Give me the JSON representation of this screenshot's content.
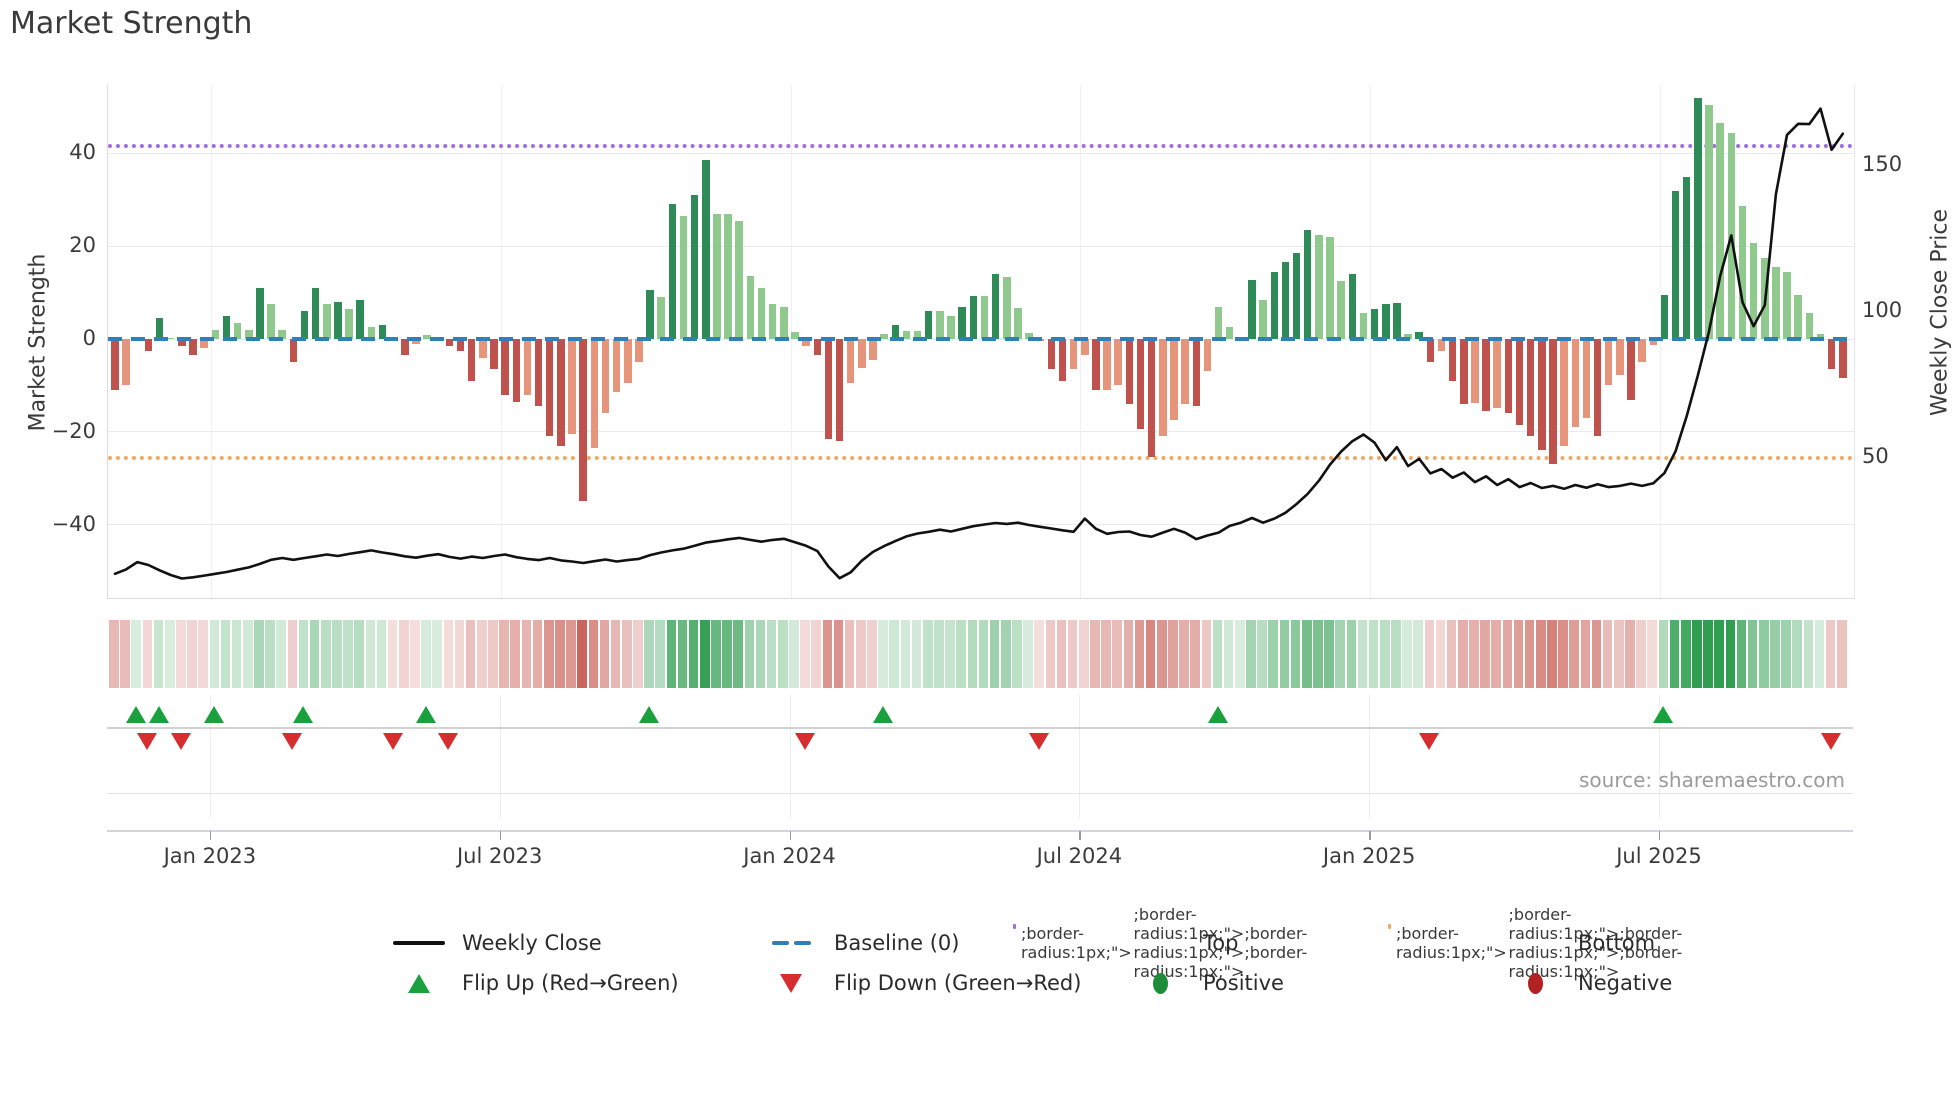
{
  "title": "Market Strength",
  "source_text": "source: sharemaestro.com",
  "axes": {
    "left_label": "Market Strength",
    "right_label": "Weekly Close Price",
    "left_ticks": [
      40,
      20,
      0,
      -20,
      -40
    ],
    "right_ticks": [
      150,
      100,
      50
    ],
    "x_ticks": [
      {
        "label": "Jan 2023",
        "week": 8.6
      },
      {
        "label": "Jul 2023",
        "week": 34.6
      },
      {
        "label": "Jan 2024",
        "week": 60.6
      },
      {
        "label": "Jul 2024",
        "week": 86.6
      },
      {
        "label": "Jan 2025",
        "week": 112.6
      },
      {
        "label": "Jul 2025",
        "week": 138.6
      }
    ]
  },
  "colors": {
    "bar_pos_strong": "#2e8b57",
    "bar_pos_weak": "#90c98e",
    "bar_neg_strong": "#c0524e",
    "bar_neg_weak": "#e6957b",
    "baseline": "#2f7fb8",
    "top_line": "#a06ee0",
    "bottom_line": "#f0a963",
    "price_line": "#111111",
    "flip_up": "#1aa03c",
    "flip_down": "#d62e2e",
    "positive_dot": "#1f8c3b",
    "negative_dot": "#b22222",
    "heat_pos_rgb": "47,158,79",
    "heat_neg_rgb": "198,83,74"
  },
  "legend": {
    "row1": [
      {
        "icon": "line",
        "label": "Weekly Close"
      },
      {
        "icon": "dashes",
        "label": "Baseline (0)"
      },
      {
        "icon": "dots-purple",
        "label": "Top"
      },
      {
        "icon": "dots-orange",
        "label": "Bottom"
      }
    ],
    "row2": [
      {
        "icon": "triangle-up",
        "label": "Flip Up (Red→Green)"
      },
      {
        "icon": "triangle-down",
        "label": "Flip Down (Green→Red)"
      },
      {
        "icon": "circle-green",
        "label": "Positive"
      },
      {
        "icon": "circle-red",
        "label": "Negative"
      }
    ]
  },
  "chart_data": {
    "type": "bar+line",
    "title": "Market Strength",
    "x_axis": "weekly, Nov 2022 - Oct 2025 (tick labels above)",
    "left_ylabel": "Market Strength",
    "left_ylim": [
      -52,
      55
    ],
    "right_ylabel": "Weekly Close Price",
    "right_ylim": [
      -14,
      178
    ],
    "baseline": 0,
    "top_level": 41.5,
    "bottom_level": -25.7,
    "strength_weekly": [
      -11,
      -10,
      0.4,
      -2.5,
      4.5,
      0.3,
      -1.5,
      -3.5,
      -2,
      2,
      5,
      3.5,
      2,
      11,
      7.5,
      2,
      -5,
      6,
      11,
      7.5,
      8,
      6.5,
      8.5,
      2.5,
      3,
      -0.5,
      -3.5,
      -1,
      0.8,
      0.4,
      -1.5,
      -2.5,
      -9,
      -4.2,
      -6.5,
      -12,
      -13.5,
      -12,
      -14.5,
      -21,
      -23,
      -20.5,
      -35,
      -23.5,
      -16,
      -11.5,
      -9.5,
      -5,
      10.5,
      9,
      29,
      26.5,
      31,
      38.5,
      27,
      27,
      25.5,
      13.5,
      11,
      7.5,
      6.8,
      1.5,
      -1.5,
      -3.5,
      -21.5,
      -22,
      -9.5,
      -6.3,
      -4.5,
      1,
      3,
      1.7,
      1.7,
      6,
      6,
      5,
      7,
      9.3,
      9.2,
      14,
      13.3,
      6.7,
      1.2,
      -0.5,
      -6.5,
      -9,
      -6.5,
      -3.5,
      -11,
      -11,
      -10,
      -14,
      -19.5,
      -25.5,
      -21,
      -17.5,
      -14,
      -14.5,
      -7,
      6.8,
      2.5,
      0.4,
      12.8,
      8.5,
      14.5,
      16.5,
      18.5,
      23.5,
      22.5,
      22,
      12.5,
      14,
      5.5,
      6.5,
      7.5,
      7.7,
      1,
      1.5,
      -5,
      -2.5,
      -9,
      -14,
      -13.8,
      -15.5,
      -14.8,
      -16,
      -18.5,
      -21,
      -24,
      -27,
      -23,
      -19,
      -17,
      -21,
      -10,
      -7.8,
      -13.2,
      -5,
      -1.3,
      9.5,
      32,
      35,
      52,
      50.5,
      46.5,
      44.5,
      28.7,
      20.7,
      17.5,
      15.5,
      14.5,
      9.5,
      5.5,
      1,
      -6.5,
      -8.5
    ],
    "weekly_close": [
      10,
      11.5,
      14,
      13,
      11.2,
      9.6,
      8.4,
      8.8,
      9.4,
      10,
      10.6,
      11.4,
      12.2,
      13.4,
      14.8,
      15.4,
      14.8,
      15.4,
      16,
      16.6,
      16.1,
      16.8,
      17.4,
      18,
      17.3,
      16.7,
      16,
      15.5,
      16.2,
      16.7,
      15.8,
      15.2,
      15.9,
      15.4,
      16.1,
      16.6,
      15.7,
      15.1,
      14.7,
      15.4,
      14.6,
      14.2,
      13.7,
      14.3,
      14.9,
      14.2,
      14.7,
      15.1,
      16.4,
      17.3,
      18,
      18.6,
      19.6,
      20.7,
      21.2,
      21.8,
      22.3,
      21.6,
      21,
      21.6,
      22,
      20.8,
      19.6,
      17.8,
      12.5,
      8.5,
      10.5,
      14.5,
      17.5,
      19.5,
      21.2,
      22.8,
      23.8,
      24.4,
      25.1,
      24.5,
      25.4,
      26.3,
      26.9,
      27.4,
      27.1,
      27.5,
      26.7,
      26.1,
      25.5,
      24.9,
      24.4,
      28.9,
      25.4,
      23.7,
      24.3,
      24.5,
      23.3,
      22.7,
      24.1,
      25.4,
      24.1,
      21.9,
      23.1,
      24.1,
      26.4,
      27.5,
      29.1,
      27.5,
      28.9,
      30.9,
      33.9,
      37.4,
      41.9,
      47.4,
      51.9,
      55.4,
      57.7,
      54.9,
      48.9,
      53.4,
      46.9,
      49.4,
      44.4,
      45.9,
      42.9,
      44.7,
      41.4,
      43.4,
      40.4,
      42.4,
      39.7,
      41.1,
      39.4,
      40.1,
      39.1,
      40.4,
      39.5,
      40.7,
      39.7,
      40.1,
      40.9,
      40.1,
      41,
      44.5,
      52,
      64,
      78,
      93,
      112,
      125.9,
      103,
      94.8,
      102,
      140,
      160.3,
      164.1,
      164,
      169.3,
      155.2,
      160.7
    ],
    "flip_up_weeks": [
      2,
      4,
      9,
      17,
      28,
      48,
      69,
      99,
      139
    ],
    "flip_down_weeks": [
      3,
      6,
      16,
      25,
      30,
      62,
      83,
      118,
      154
    ],
    "legend_entries": [
      "Weekly Close",
      "Baseline (0)",
      "Top",
      "Bottom",
      "Flip Up (Red→Green)",
      "Flip Down (Green→Red)",
      "Positive",
      "Negative"
    ],
    "grid": true,
    "heatmap_strip": "same weekly strength values rendered as red/green intensity band"
  }
}
